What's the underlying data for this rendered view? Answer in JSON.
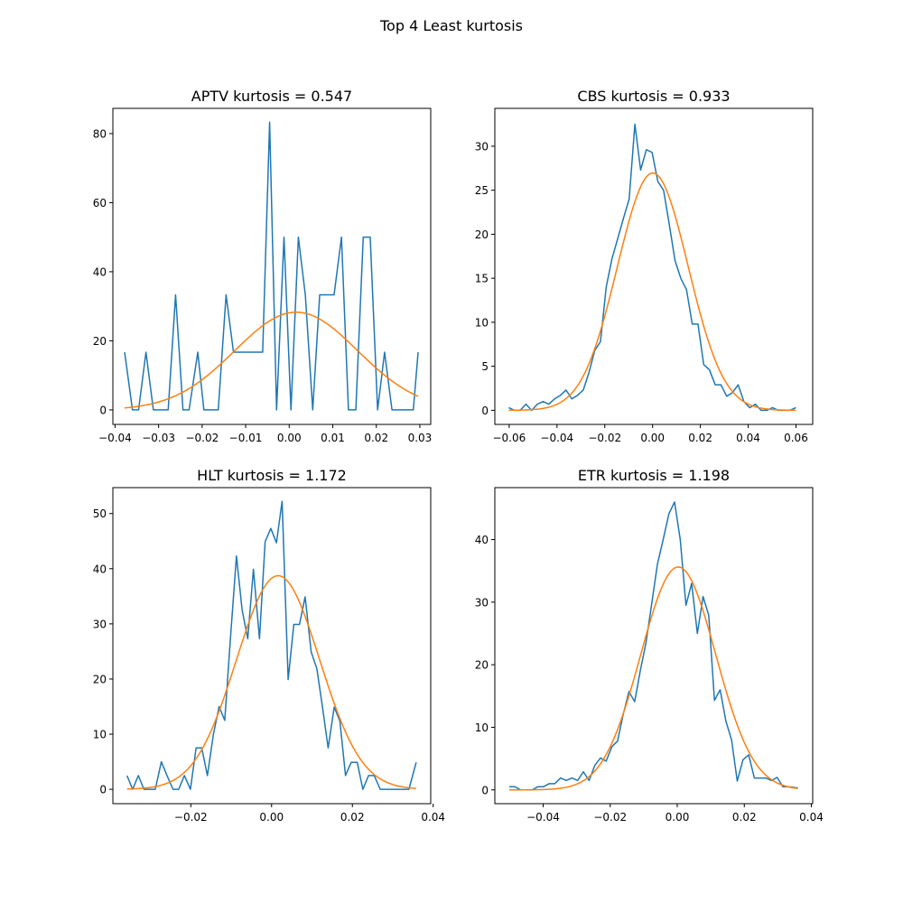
{
  "figure": {
    "suptitle": "Top 4 Least kurtosis"
  },
  "colors": {
    "histogram": "#1f77b4",
    "normal_fit": "#ff7f0e"
  },
  "chart_data": [
    {
      "type": "line",
      "title": "APTV kurtosis = 0.547",
      "xlim": [
        -0.0405,
        0.0325
      ],
      "ylim": [
        -4.2,
        87.3
      ],
      "xticks": [
        -0.04,
        -0.03,
        -0.02,
        -0.01,
        0.0,
        0.01,
        0.02,
        0.03
      ],
      "xtick_labels": [
        "−0.04",
        "−0.03",
        "−0.02",
        "−0.01",
        "0.00",
        "0.01",
        "0.02",
        "0.03"
      ],
      "yticks": [
        0,
        20,
        40,
        60,
        80
      ],
      "ytick_labels": [
        "0",
        "20",
        "40",
        "60",
        "80"
      ],
      "grid": false,
      "series": [
        {
          "role": "histogram",
          "x": [
            -0.0378,
            -0.036,
            -0.0346,
            -0.0329,
            -0.0312,
            -0.0294,
            -0.0278,
            -0.0261,
            -0.0244,
            -0.023,
            -0.021,
            -0.0196,
            -0.0178,
            -0.0163,
            -0.0145,
            -0.0128,
            -0.0112,
            -0.0095,
            -0.0079,
            -0.0061,
            -0.0045,
            -0.0029,
            -0.0012,
            0.0004,
            0.0021,
            0.0037,
            0.0054,
            0.007,
            0.0087,
            0.0103,
            0.012,
            0.0136,
            0.0153,
            0.017,
            0.0186,
            0.0203,
            0.0219,
            0.0236,
            0.0252,
            0.0269,
            0.0285,
            0.0296
          ],
          "y": [
            16.7,
            0,
            0,
            16.7,
            0,
            0,
            0,
            33.3,
            0,
            0,
            16.7,
            0,
            0,
            0,
            33.3,
            16.7,
            16.7,
            16.7,
            16.7,
            16.7,
            83.3,
            0,
            50,
            0,
            50,
            33.3,
            0,
            33.3,
            33.3,
            33.3,
            50,
            0,
            0,
            50,
            50,
            0,
            16.7,
            0,
            0,
            0,
            0,
            16.7
          ]
        },
        {
          "role": "normal_fit",
          "mean": 0.0016,
          "sd": 0.0141,
          "x_range": [
            -0.0378,
            0.0296
          ]
        }
      ]
    },
    {
      "type": "line",
      "title": "CBS kurtosis = 0.933",
      "xlim": [
        -0.066,
        0.067
      ],
      "ylim": [
        -1.6,
        34.3
      ],
      "xticks": [
        -0.06,
        -0.04,
        -0.02,
        0.0,
        0.02,
        0.04,
        0.06
      ],
      "xtick_labels": [
        "−0.06",
        "−0.04",
        "−0.02",
        "0.00",
        "0.02",
        "0.04",
        "0.06"
      ],
      "yticks": [
        0,
        5,
        10,
        15,
        20,
        25,
        30
      ],
      "ytick_labels": [
        "0",
        "5",
        "10",
        "15",
        "20",
        "25",
        "30"
      ],
      "grid": false,
      "series": [
        {
          "role": "histogram",
          "x": [
            -0.0602,
            -0.0578,
            -0.0554,
            -0.053,
            -0.0506,
            -0.0482,
            -0.0458,
            -0.0434,
            -0.041,
            -0.0386,
            -0.0362,
            -0.0338,
            -0.0314,
            -0.029,
            -0.0266,
            -0.0242,
            -0.0218,
            -0.0194,
            -0.017,
            -0.0146,
            -0.0122,
            -0.0098,
            -0.0074,
            -0.005,
            -0.0026,
            -0.0002,
            0.0022,
            0.0046,
            0.007,
            0.0094,
            0.0118,
            0.0142,
            0.0166,
            0.019,
            0.0214,
            0.0238,
            0.0262,
            0.0286,
            0.031,
            0.0334,
            0.0358,
            0.0382,
            0.0406,
            0.043,
            0.0454,
            0.0478,
            0.0502,
            0.0526,
            0.055,
            0.0574,
            0.06
          ],
          "y": [
            0.3,
            0,
            0,
            0.7,
            0,
            0.7,
            1.0,
            0.7,
            1.3,
            1.7,
            2.3,
            1.3,
            1.7,
            2.3,
            4.3,
            6.8,
            7.8,
            14.0,
            17.2,
            19.5,
            21.8,
            24.0,
            32.5,
            27.3,
            29.6,
            29.3,
            26.0,
            25.0,
            21.1,
            17.0,
            15.0,
            13.7,
            9.8,
            9.8,
            5.2,
            4.6,
            2.9,
            2.9,
            1.6,
            2.0,
            2.9,
            1.0,
            0.3,
            0.7,
            0,
            0,
            0.3,
            0,
            0,
            0,
            0.3
          ]
        },
        {
          "role": "normal_fit",
          "mean": 0.0001,
          "sd": 0.0148,
          "x_range": [
            -0.0602,
            0.06
          ]
        }
      ]
    },
    {
      "type": "line",
      "title": "HLT kurtosis = 1.172",
      "xlim": [
        -0.0393,
        0.0394
      ],
      "ylim": [
        -2.6,
        54.7
      ],
      "xticks": [
        -0.02,
        0.0,
        0.02,
        0.04
      ],
      "xtick_labels": [
        "−0.02",
        "0.00",
        "0.02",
        "0.04"
      ],
      "yticks": [
        0,
        10,
        20,
        30,
        40,
        50
      ],
      "ytick_labels": [
        "0",
        "10",
        "20",
        "30",
        "40",
        "50"
      ],
      "grid": false,
      "series": [
        {
          "role": "histogram",
          "x": [
            -0.0358,
            -0.0344,
            -0.033,
            -0.0316,
            -0.0302,
            -0.0288,
            -0.0273,
            -0.0259,
            -0.0244,
            -0.023,
            -0.0216,
            -0.0201,
            -0.0187,
            -0.0173,
            -0.0159,
            -0.0144,
            -0.013,
            -0.0116,
            -0.0102,
            -0.0087,
            -0.0073,
            -0.0059,
            -0.0045,
            -0.003,
            -0.0016,
            -0.0002,
            0.0012,
            0.0026,
            0.0041,
            0.0055,
            0.0069,
            0.0083,
            0.0098,
            0.0112,
            0.0126,
            0.014,
            0.0155,
            0.0169,
            0.0183,
            0.0197,
            0.0212,
            0.0226,
            0.024,
            0.0254,
            0.0269,
            0.0283,
            0.0297,
            0.0311,
            0.0326,
            0.034,
            0.0358
          ],
          "y": [
            2.5,
            0,
            2.5,
            0,
            0,
            0,
            5.0,
            2.5,
            0,
            0,
            2.5,
            0,
            7.5,
            7.5,
            2.5,
            10.0,
            15.0,
            12.5,
            27.3,
            42.3,
            32.5,
            27.3,
            39.9,
            27.3,
            44.9,
            47.3,
            44.7,
            52.2,
            19.9,
            29.9,
            29.9,
            34.9,
            24.9,
            21.9,
            14.9,
            7.5,
            14.9,
            12.4,
            2.5,
            4.9,
            4.9,
            0,
            2.5,
            2.5,
            0,
            0,
            0,
            0,
            0,
            0,
            4.9
          ]
        },
        {
          "role": "normal_fit",
          "mean": 0.0016,
          "sd": 0.0103,
          "x_range": [
            -0.0358,
            0.0358
          ]
        }
      ]
    },
    {
      "type": "line",
      "title": "ETR kurtosis = 1.198",
      "xlim": [
        -0.0544,
        0.0404
      ],
      "ylim": [
        -2.2,
        48.3
      ],
      "xticks": [
        -0.04,
        -0.02,
        0.0,
        0.02,
        0.04
      ],
      "xtick_labels": [
        "−0.04",
        "−0.02",
        "0.00",
        "0.02",
        "0.04"
      ],
      "yticks": [
        0,
        10,
        20,
        30,
        40
      ],
      "ytick_labels": [
        "0",
        "10",
        "20",
        "30",
        "40"
      ],
      "grid": false,
      "series": [
        {
          "role": "histogram",
          "x": [
            -0.0501,
            -0.0484,
            -0.0467,
            -0.045,
            -0.0433,
            -0.0416,
            -0.0399,
            -0.0382,
            -0.0365,
            -0.0348,
            -0.0331,
            -0.0314,
            -0.0297,
            -0.028,
            -0.0263,
            -0.0246,
            -0.0229,
            -0.0212,
            -0.0195,
            -0.0178,
            -0.0161,
            -0.0144,
            -0.0127,
            -0.011,
            -0.0093,
            -0.0076,
            -0.0059,
            -0.0042,
            -0.0025,
            -0.0008,
            0.0009,
            0.0026,
            0.0043,
            0.006,
            0.0077,
            0.0094,
            0.0111,
            0.0128,
            0.0145,
            0.0162,
            0.0179,
            0.0196,
            0.0213,
            0.023,
            0.0247,
            0.0264,
            0.0281,
            0.0298,
            0.0315,
            0.0332,
            0.036
          ],
          "y": [
            0.5,
            0.5,
            0,
            0,
            0,
            0.5,
            0.5,
            1.0,
            1.0,
            1.9,
            1.5,
            1.9,
            1.5,
            2.9,
            1.5,
            3.9,
            5.1,
            4.6,
            6.9,
            7.8,
            12.1,
            15.7,
            14.1,
            19.1,
            23.6,
            29.8,
            36.1,
            40.0,
            44.1,
            46.0,
            40.0,
            29.5,
            33.0,
            25.0,
            30.9,
            27.9,
            14.3,
            16.0,
            11.0,
            8.0,
            1.4,
            4.8,
            5.6,
            1.9,
            1.9,
            1.9,
            1.5,
            2.0,
            0.5,
            0.5,
            0.3
          ]
        },
        {
          "role": "normal_fit",
          "mean": 0.0003,
          "sd": 0.0112,
          "x_range": [
            -0.0501,
            0.036
          ]
        }
      ]
    }
  ]
}
